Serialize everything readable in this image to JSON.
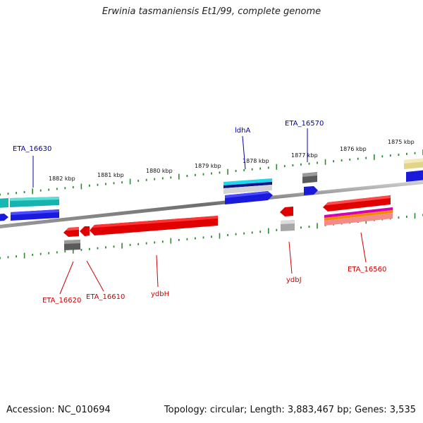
{
  "title": "Erwinia tasmaniensis Et1/99, complete genome",
  "ticks": [
    "1882 kbp",
    "1881 kbp",
    "1880 kbp",
    "1879 kbp",
    "1878 kbp",
    "1877 kbp",
    "1876 kbp",
    "1875 kbp"
  ],
  "labels": {
    "eta16630": "ETA_16630",
    "ldha": "ldhA",
    "eta16570": "ETA_16570",
    "eta16620": "ETA_16620",
    "eta16610": "ETA_16610",
    "ydbh": "ydbH",
    "ydbj": "ydbJ",
    "eta16560": "ETA_16560"
  },
  "colors": {
    "backbone": "#808080",
    "ruler": "#2e8b2e",
    "forward_label": "#0000aa",
    "reverse_label": "#cc0000",
    "cds_forward": "#1a1add",
    "cds_reverse": "#e00000"
  },
  "accession": "Accession: NC_010694",
  "topology": "Topology: circular; Length: 3,883,467 bp; Genes: 3,535"
}
